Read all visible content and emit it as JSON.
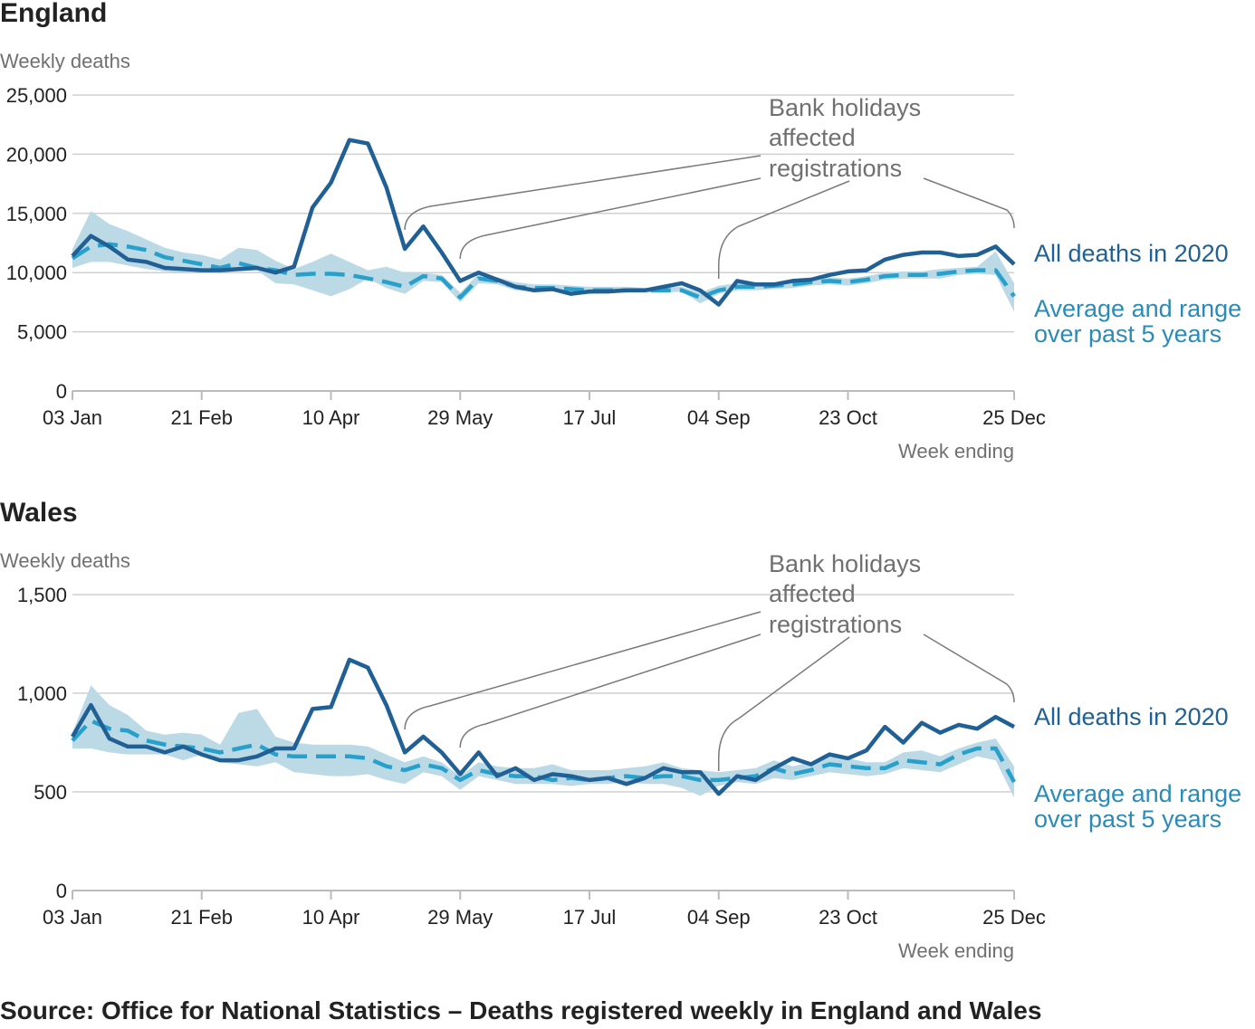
{
  "source": "Source: Office for National Statistics – Deaths registered weekly in England and Wales",
  "colors": {
    "all_deaths": "#206095",
    "average": "#27a0cc",
    "range": "#bcd9e6",
    "annotation": "#707070"
  },
  "chart_data": [
    {
      "type": "line",
      "title": "England",
      "ylabel": "Weekly deaths",
      "xlabel": "Week ending",
      "ylim": [
        0,
        25000
      ],
      "y_ticks": [
        "0",
        "5,000",
        "10,000",
        "15,000",
        "20,000",
        "25,000"
      ],
      "x_tick_labels": [
        "03 Jan",
        "21 Feb",
        "10 Apr",
        "29 May",
        "17 Jul",
        "04 Sep",
        "23 Oct",
        "25 Dec"
      ],
      "x_tick_weeks": [
        1,
        8,
        15,
        22,
        29,
        36,
        43,
        52
      ],
      "x": [
        1,
        2,
        3,
        4,
        5,
        6,
        7,
        8,
        9,
        10,
        11,
        12,
        13,
        14,
        15,
        16,
        17,
        18,
        19,
        20,
        21,
        22,
        23,
        24,
        25,
        26,
        27,
        28,
        29,
        30,
        31,
        32,
        33,
        34,
        35,
        36,
        37,
        38,
        39,
        40,
        41,
        42,
        43,
        44,
        45,
        46,
        47,
        48,
        49,
        50,
        51,
        52
      ],
      "annotation": [
        "Bank holidays",
        "affected",
        "registrations"
      ],
      "annotation_weeks": [
        19,
        22,
        36,
        52
      ],
      "series": [
        {
          "name": "All deaths in 2020",
          "style": "solid",
          "values": [
            11400,
            13100,
            12200,
            11100,
            10900,
            10400,
            10300,
            10200,
            10200,
            10300,
            10400,
            10000,
            10500,
            15500,
            17600,
            21200,
            20900,
            17200,
            12000,
            13900,
            11700,
            9300,
            10000,
            9400,
            8800,
            8500,
            8600,
            8200,
            8400,
            8400,
            8500,
            8500,
            8800,
            9100,
            8500,
            7300,
            9300,
            9000,
            9000,
            9300,
            9400,
            9800,
            10100,
            10200,
            11100,
            11500,
            11700,
            11700,
            11400,
            11500,
            12200,
            10700
          ]
        },
        {
          "name": "Average and range over past 5 years",
          "style": "dashed",
          "values": [
            11200,
            12200,
            12400,
            12200,
            11900,
            11300,
            11000,
            10700,
            10400,
            10800,
            10400,
            10200,
            9800,
            9900,
            9900,
            9800,
            9500,
            9200,
            8800,
            9700,
            9500,
            7900,
            9500,
            9300,
            8800,
            8700,
            8700,
            8600,
            8500,
            8500,
            8500,
            8500,
            8500,
            8500,
            7900,
            8500,
            8800,
            8800,
            8900,
            9000,
            9200,
            9300,
            9200,
            9400,
            9700,
            9800,
            9800,
            9900,
            10100,
            10200,
            10200,
            8000
          ]
        }
      ],
      "range": {
        "min": [
          10400,
          10900,
          10900,
          10600,
          10300,
          10100,
          10000,
          10000,
          10000,
          10100,
          10200,
          9100,
          9000,
          8500,
          8000,
          8600,
          9500,
          8700,
          8200,
          9300,
          9200,
          7500,
          9100,
          9000,
          8500,
          8400,
          8500,
          8300,
          8200,
          8300,
          8300,
          8300,
          8300,
          8400,
          7400,
          8200,
          8500,
          8500,
          8600,
          8700,
          8900,
          9000,
          8900,
          9100,
          9400,
          9500,
          9500,
          9500,
          9800,
          9900,
          9800,
          6700
        ],
        "max": [
          12000,
          15200,
          14100,
          13500,
          12800,
          12100,
          11700,
          11500,
          11100,
          12100,
          11900,
          11000,
          10300,
          10900,
          11600,
          10900,
          10200,
          10500,
          10000,
          10000,
          9800,
          8300,
          9900,
          9600,
          9200,
          9000,
          9000,
          8900,
          8800,
          8800,
          8800,
          8700,
          8800,
          8800,
          8300,
          8900,
          9100,
          9100,
          9200,
          9300,
          9500,
          9600,
          9500,
          9700,
          10000,
          10100,
          10100,
          10300,
          10400,
          10500,
          11800,
          9100
        ]
      }
    },
    {
      "type": "line",
      "title": "Wales",
      "ylabel": "Weekly deaths",
      "xlabel": "Week ending",
      "ylim": [
        0,
        1500
      ],
      "y_ticks": [
        "0",
        "500",
        "1,000",
        "1,500"
      ],
      "x_tick_labels": [
        "03 Jan",
        "21 Feb",
        "10 Apr",
        "29 May",
        "17 Jul",
        "04 Sep",
        "23 Oct",
        "25 Dec"
      ],
      "x_tick_weeks": [
        1,
        8,
        15,
        22,
        29,
        36,
        43,
        52
      ],
      "x": [
        1,
        2,
        3,
        4,
        5,
        6,
        7,
        8,
        9,
        10,
        11,
        12,
        13,
        14,
        15,
        16,
        17,
        18,
        19,
        20,
        21,
        22,
        23,
        24,
        25,
        26,
        27,
        28,
        29,
        30,
        31,
        32,
        33,
        34,
        35,
        36,
        37,
        38,
        39,
        40,
        41,
        42,
        43,
        44,
        45,
        46,
        47,
        48,
        49,
        50,
        51,
        52
      ],
      "annotation": [
        "Bank holidays",
        "affected",
        "registrations"
      ],
      "annotation_weeks": [
        19,
        22,
        36,
        52
      ],
      "series": [
        {
          "name": "All deaths in 2020",
          "style": "solid",
          "values": [
            780,
            940,
            770,
            730,
            730,
            700,
            730,
            690,
            660,
            660,
            680,
            720,
            720,
            920,
            930,
            1170,
            1130,
            940,
            700,
            780,
            700,
            590,
            700,
            580,
            620,
            560,
            590,
            580,
            560,
            570,
            540,
            570,
            620,
            600,
            600,
            490,
            580,
            560,
            620,
            670,
            640,
            690,
            670,
            710,
            830,
            750,
            850,
            800,
            840,
            820,
            880,
            830
          ]
        },
        {
          "name": "Average and range over past 5 years",
          "style": "dashed",
          "values": [
            760,
            860,
            820,
            810,
            760,
            740,
            730,
            720,
            700,
            720,
            740,
            690,
            680,
            680,
            680,
            680,
            670,
            630,
            610,
            640,
            620,
            560,
            610,
            590,
            580,
            580,
            560,
            570,
            560,
            570,
            580,
            570,
            580,
            580,
            560,
            560,
            570,
            580,
            620,
            590,
            610,
            640,
            630,
            620,
            620,
            660,
            650,
            640,
            690,
            720,
            720,
            550
          ]
        }
      ],
      "range": {
        "min": [
          720,
          720,
          700,
          690,
          690,
          690,
          660,
          690,
          650,
          640,
          630,
          650,
          600,
          590,
          580,
          580,
          590,
          560,
          540,
          600,
          580,
          510,
          580,
          560,
          540,
          540,
          540,
          530,
          540,
          540,
          550,
          540,
          540,
          520,
          480,
          530,
          550,
          540,
          570,
          560,
          580,
          600,
          590,
          580,
          590,
          620,
          610,
          600,
          640,
          680,
          660,
          470
        ],
        "max": [
          800,
          1040,
          940,
          890,
          810,
          790,
          800,
          790,
          740,
          900,
          920,
          780,
          750,
          740,
          740,
          740,
          730,
          690,
          650,
          680,
          650,
          580,
          650,
          630,
          620,
          620,
          640,
          610,
          610,
          610,
          620,
          630,
          650,
          620,
          610,
          600,
          610,
          620,
          660,
          630,
          650,
          680,
          670,
          650,
          650,
          700,
          710,
          680,
          720,
          750,
          770,
          630
        ]
      }
    }
  ]
}
